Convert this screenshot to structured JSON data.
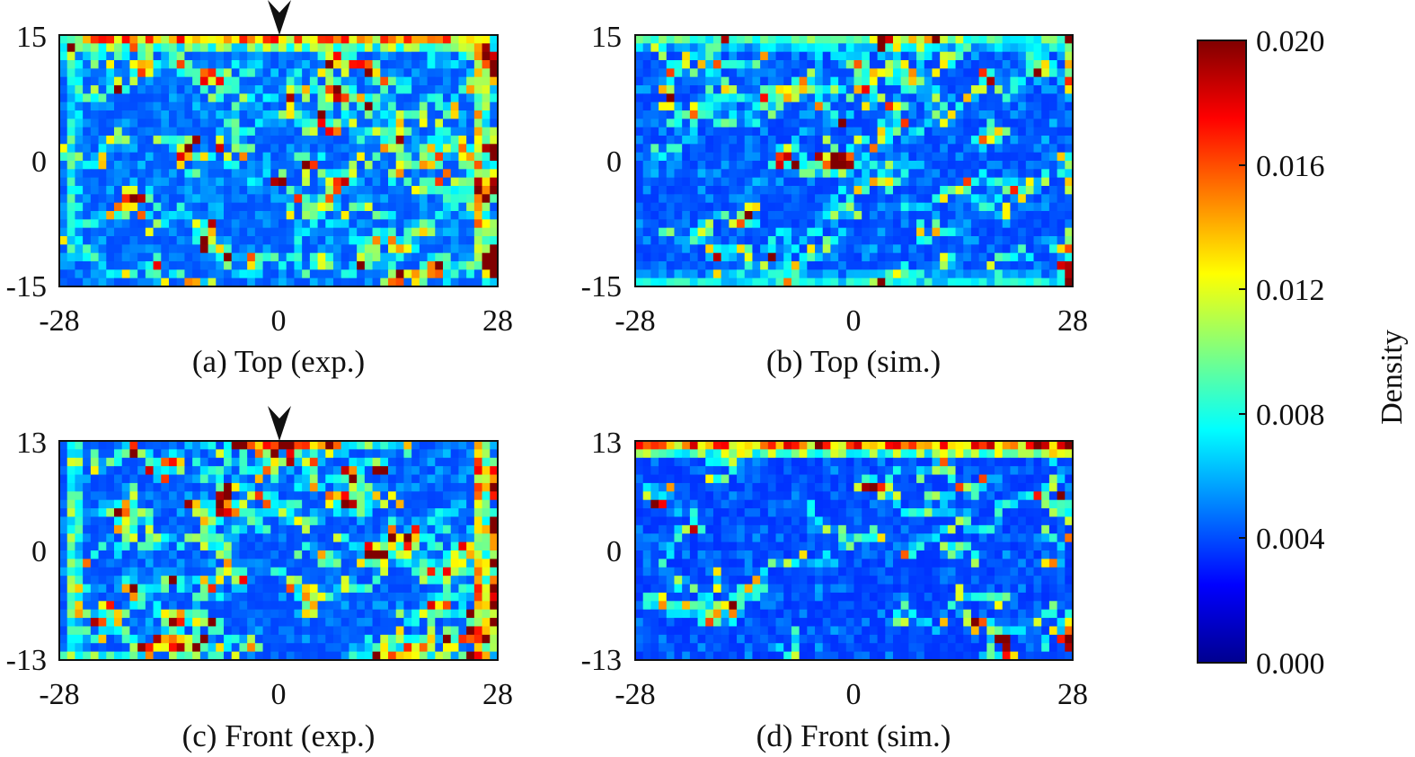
{
  "chart_data": [
    {
      "type": "heatmap",
      "caption": "(a) Top (exp.)",
      "xlim": [
        -28,
        28
      ],
      "ylim": [
        -15,
        15
      ],
      "xticks": [
        "-28",
        "0",
        "28"
      ],
      "yticks": [
        "15",
        "0",
        "-15"
      ],
      "marker": true,
      "marker_x": 0,
      "pattern": {
        "base": 0.0022,
        "noise": 0.003,
        "streaks": 70,
        "seed": 11,
        "hot_edges": [
          {
            "edge": "top",
            "level": 0.016,
            "from": -25,
            "to": 26
          },
          {
            "edge": "right",
            "level": 0.014,
            "from": -13,
            "to": 15
          },
          {
            "edge": "left",
            "level": 0.008,
            "from": -12,
            "to": 15
          }
        ]
      }
    },
    {
      "type": "heatmap",
      "caption": "(b) Top (sim.)",
      "xlim": [
        -28,
        28
      ],
      "ylim": [
        -15,
        15
      ],
      "xticks": [
        "-28",
        "0",
        "28"
      ],
      "yticks": [
        "15",
        "0",
        "-15"
      ],
      "marker": false,
      "pattern": {
        "base": 0.0018,
        "noise": 0.0032,
        "streaks": 55,
        "seed": 23,
        "hot_edges": [
          {
            "edge": "top",
            "level": 0.009,
            "from": -28,
            "to": 28
          },
          {
            "edge": "bottom",
            "level": 0.007,
            "from": -28,
            "to": 28
          }
        ]
      }
    },
    {
      "type": "heatmap",
      "caption": "(c) Front (exp.)",
      "xlim": [
        -28,
        28
      ],
      "ylim": [
        -13,
        13
      ],
      "xticks": [
        "-28",
        "0",
        "28"
      ],
      "yticks": [
        "13",
        "0",
        "-13"
      ],
      "marker": true,
      "marker_x": 0,
      "pattern": {
        "base": 0.002,
        "noise": 0.003,
        "streaks": 80,
        "seed": 37,
        "hot_edges": [
          {
            "edge": "right",
            "level": 0.016,
            "from": -13,
            "to": 13
          },
          {
            "edge": "left",
            "level": 0.01,
            "from": -13,
            "to": 13
          }
        ]
      }
    },
    {
      "type": "heatmap",
      "caption": "(d) Front (sim.)",
      "xlim": [
        -28,
        28
      ],
      "ylim": [
        -13,
        13
      ],
      "xticks": [
        "-28",
        "0",
        "28"
      ],
      "yticks": [
        "13",
        "0",
        "-13"
      ],
      "marker": false,
      "pattern": {
        "base": 0.0016,
        "noise": 0.0028,
        "streaks": 40,
        "seed": 53,
        "hot_edges": [
          {
            "edge": "top",
            "level": 0.017,
            "from": -28,
            "to": 28
          }
        ]
      }
    }
  ],
  "colorbar": {
    "title": "Density",
    "min": 0.0,
    "max": 0.02,
    "ticks": [
      "0.020",
      "0.016",
      "0.012",
      "0.008",
      "0.004",
      "0.000"
    ],
    "colormap": "jet"
  }
}
